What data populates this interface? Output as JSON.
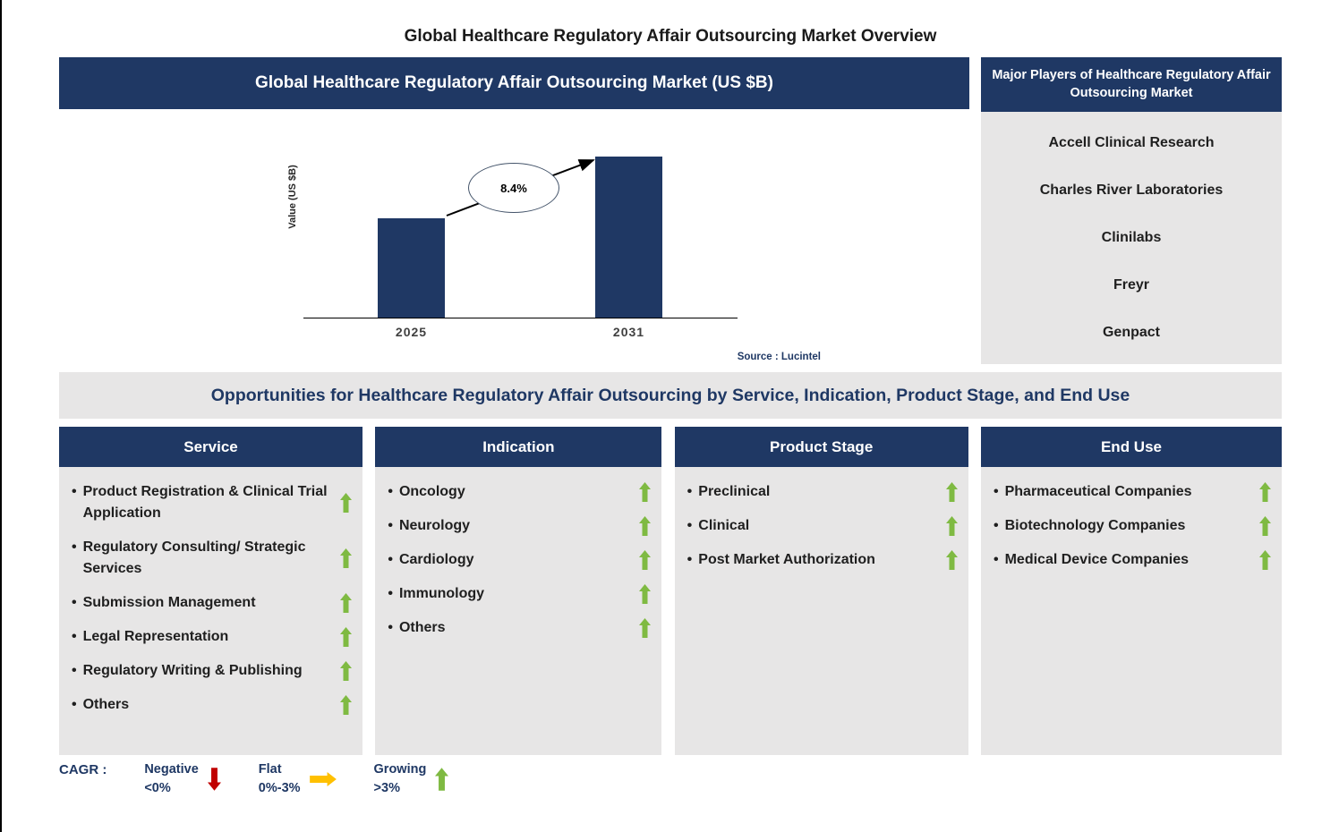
{
  "page": {
    "title": "Global Healthcare Regulatory Affair Outsourcing Market Overview"
  },
  "colors": {
    "navy": "#1F3864",
    "gray": "#E7E6E6",
    "green": "#7FBA42",
    "red": "#C00000",
    "yellow": "#FFC000"
  },
  "chart_section": {
    "header": "Global Healthcare Regulatory Affair Outsourcing Market (US $B)",
    "ylabel": "Value (US $B)",
    "cagr_label": "8.4%",
    "source": "Source : Lucintel"
  },
  "chart_data": {
    "type": "bar",
    "title": "Global Healthcare Regulatory Affair Outsourcing Market (US $B)",
    "categories": [
      "2025",
      "2031"
    ],
    "values": [
      1.0,
      1.62
    ],
    "xlabel": "",
    "ylabel": "Value (US $B)",
    "annotation": "8.4%",
    "source": "Source : Lucintel",
    "grid": false,
    "legend_position": "none",
    "value_labels_shown": false
  },
  "major_players": {
    "header": "Major Players of Healthcare Regulatory Affair Outsourcing Market",
    "items": [
      "Accell Clinical Research",
      "Charles River Laboratories",
      "Clinilabs",
      "Freyr",
      "Genpact"
    ]
  },
  "opportunities": {
    "header": "Opportunities for Healthcare Regulatory Affair Outsourcing by Service, Indication, Product Stage, and End Use",
    "columns": [
      {
        "title": "Service",
        "items": [
          {
            "label": "Product Registration & Clinical Trial Application",
            "trend": "growing"
          },
          {
            "label": "Regulatory Consulting/ Strategic Services",
            "trend": "growing"
          },
          {
            "label": "Submission Management",
            "trend": "growing"
          },
          {
            "label": "Legal Representation",
            "trend": "growing"
          },
          {
            "label": "Regulatory Writing & Publishing",
            "trend": "growing"
          },
          {
            "label": "Others",
            "trend": "growing"
          }
        ]
      },
      {
        "title": "Indication",
        "items": [
          {
            "label": "Oncology",
            "trend": "growing"
          },
          {
            "label": "Neurology",
            "trend": "growing"
          },
          {
            "label": "Cardiology",
            "trend": "growing"
          },
          {
            "label": "Immunology",
            "trend": "growing"
          },
          {
            "label": "Others",
            "trend": "growing"
          }
        ]
      },
      {
        "title": "Product Stage",
        "items": [
          {
            "label": "Preclinical",
            "trend": "growing"
          },
          {
            "label": "Clinical",
            "trend": "growing"
          },
          {
            "label": "Post Market Authorization",
            "trend": "growing"
          }
        ]
      },
      {
        "title": "End Use",
        "items": [
          {
            "label": "Pharmaceutical Companies",
            "trend": "growing"
          },
          {
            "label": "Biotechnology Companies",
            "trend": "growing"
          },
          {
            "label": "Medical Device Companies",
            "trend": "growing"
          }
        ]
      }
    ]
  },
  "legend": {
    "label": "CAGR :",
    "items": [
      {
        "name": "Negative",
        "range": "<0%",
        "trend": "negative"
      },
      {
        "name": "Flat",
        "range": "0%-3%",
        "trend": "flat"
      },
      {
        "name": "Growing",
        "range": ">3%",
        "trend": "growing"
      }
    ]
  }
}
